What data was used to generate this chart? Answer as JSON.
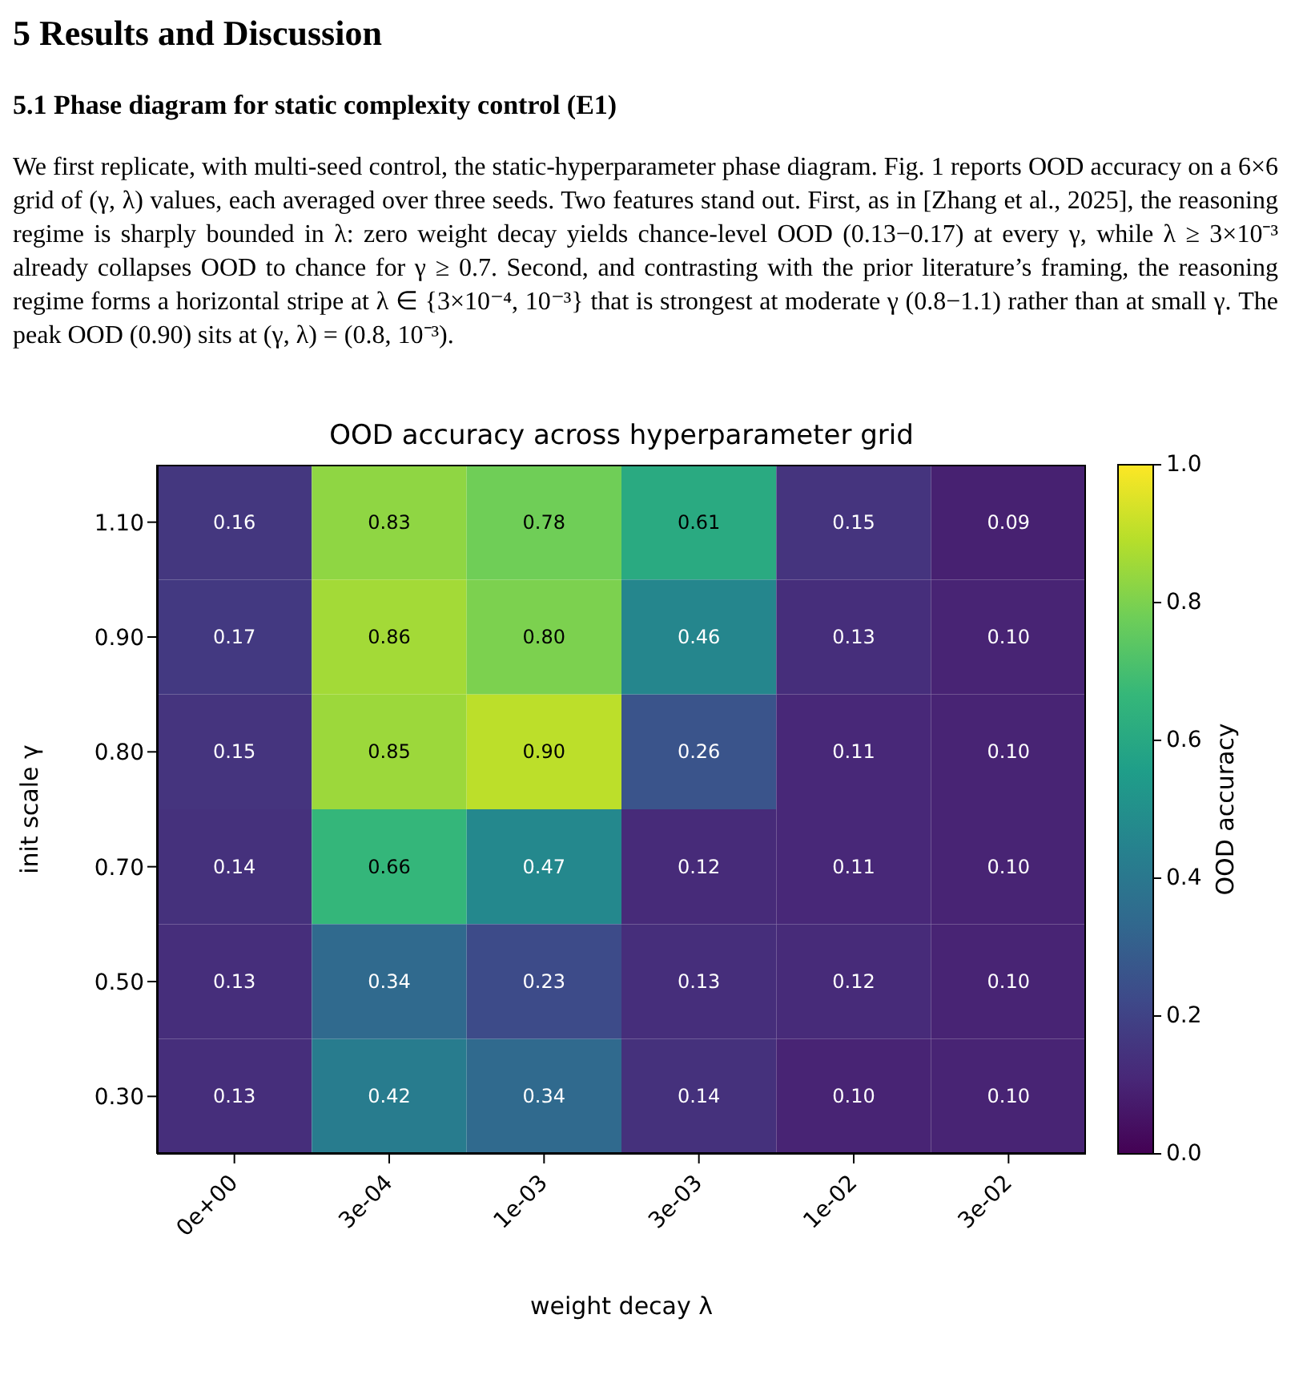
{
  "chart_data": {
    "type": "heatmap",
    "title": "OOD accuracy across hyperparameter grid",
    "xlabel": "weight decay λ",
    "ylabel": "init scale γ",
    "clabel": "OOD accuracy",
    "annotations": [
      "5   Results and Discussion",
      "5.1   Phase diagram for static complexity control (E1)",
      "We first replicate, with multi-seed control, the static-hyperparameter phase diagram. Fig. 1 reports OOD accuracy on a 6×6 grid of (γ, λ) values, each averaged over three seeds. Two features stand out. First, as in [Zhang et al., 2025], the reasoning regime is sharply bounded in λ: zero weight decay yields chance-level OOD (0.13−0.17) at every γ, while λ ≥ 3×10⁻³ already collapses OOD to chance for γ ≥ 0.7. Second, and contrasting with the prior literature’s framing, the reasoning regime forms a horizontal stripe at λ ∈ {3×10⁻⁴, 10⁻³} that is strongest at moderate γ (0.8−1.1) rather than at small γ. The peak OOD (0.90) sits at (γ, λ) = (0.8, 10⁻³)."
    ],
    "categories": [
      "0e+00",
      "3e-04",
      "1e-03",
      "3e-03",
      "1e-02",
      "3e-02"
    ],
    "y_categories": [
      "1.10",
      "0.90",
      "0.80",
      "0.70",
      "0.50",
      "0.30"
    ],
    "cells": [
      [
        0.16,
        0.83,
        0.78,
        0.61,
        0.15,
        0.09
      ],
      [
        0.17,
        0.86,
        0.8,
        0.46,
        0.13,
        0.1
      ],
      [
        0.15,
        0.85,
        0.9,
        0.26,
        0.11,
        0.1
      ],
      [
        0.14,
        0.66,
        0.47,
        0.12,
        0.11,
        0.1
      ],
      [
        0.13,
        0.34,
        0.23,
        0.13,
        0.12,
        0.1
      ],
      [
        0.13,
        0.42,
        0.34,
        0.14,
        0.1,
        0.1
      ]
    ],
    "cell_labels": [
      [
        "0.16",
        "0.83",
        "0.78",
        "0.61",
        "0.15",
        "0.09"
      ],
      [
        "0.17",
        "0.86",
        "0.80",
        "0.46",
        "0.13",
        "0.10"
      ],
      [
        "0.15",
        "0.85",
        "0.90",
        "0.26",
        "0.11",
        "0.10"
      ],
      [
        "0.14",
        "0.66",
        "0.47",
        "0.12",
        "0.11",
        "0.10"
      ],
      [
        "0.13",
        "0.34",
        "0.23",
        "0.13",
        "0.12",
        "0.10"
      ],
      [
        "0.13",
        "0.42",
        "0.34",
        "0.14",
        "0.10",
        "0.10"
      ]
    ],
    "clim": [
      0,
      1
    ],
    "cticks": [
      {
        "value": 0,
        "label": "0.0"
      },
      {
        "value": 0.2,
        "label": "0.2"
      },
      {
        "value": 0.4,
        "label": "0.4"
      },
      {
        "value": 0.6,
        "label": "0.6"
      },
      {
        "value": 0.8,
        "label": "0.8"
      },
      {
        "value": 1,
        "label": "1.0"
      }
    ]
  }
}
